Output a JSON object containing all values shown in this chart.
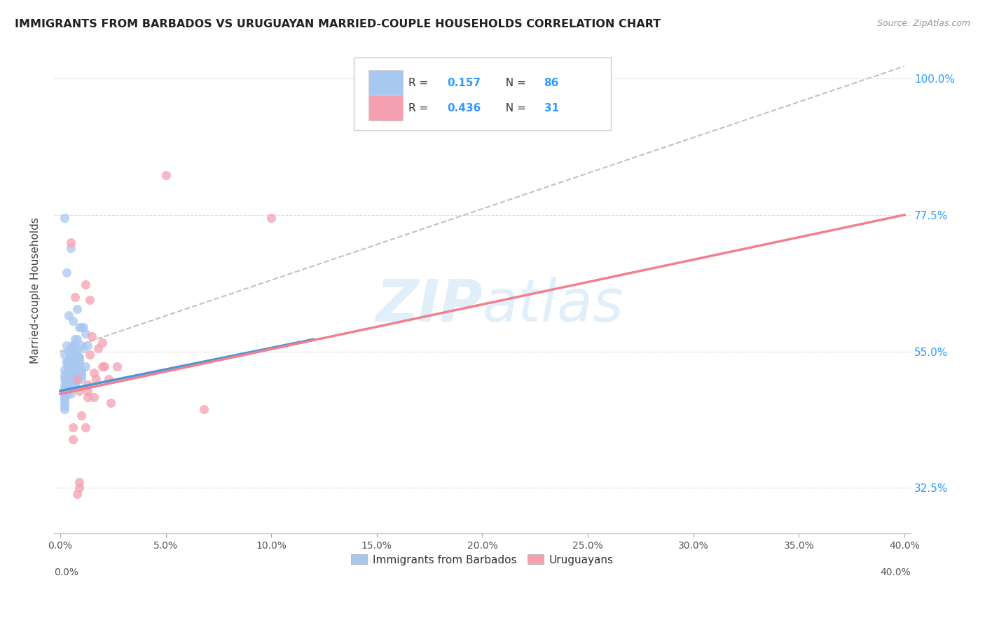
{
  "title": "IMMIGRANTS FROM BARBADOS VS URUGUAYAN MARRIED-COUPLE HOUSEHOLDS CORRELATION CHART",
  "source": "Source: ZipAtlas.com",
  "ylabel_label": "Married-couple Households",
  "legend_label1": "Immigrants from Barbados",
  "legend_label2": "Uruguayans",
  "color_blue": "#a8c8f0",
  "color_pink": "#f5a0b0",
  "color_blue_text": "#3399ff",
  "color_line_blue": "#4d94d4",
  "color_line_pink": "#f08090",
  "color_diag": "#bbbbbb",
  "watermark_color": "#cce5f8",
  "blue_points_x": [
    0.2,
    0.5,
    0.3,
    0.8,
    0.4,
    0.6,
    1.0,
    1.2,
    0.7,
    0.9,
    0.3,
    0.5,
    0.8,
    1.1,
    0.6,
    0.4,
    0.2,
    0.9,
    1.3,
    0.7,
    0.3,
    0.6,
    0.4,
    0.8,
    1.0,
    0.5,
    0.3,
    0.7,
    0.9,
    0.4,
    0.6,
    0.2,
    0.8,
    1.1,
    0.5,
    0.3,
    0.7,
    0.4,
    0.6,
    0.9,
    0.2,
    0.5,
    0.3,
    0.4,
    0.7,
    0.2,
    0.9,
    0.6,
    0.3,
    1.2,
    0.2,
    0.5,
    0.6,
    0.3,
    0.8,
    0.2,
    0.5,
    0.3,
    0.8,
    0.6,
    0.2,
    1.0,
    0.5,
    0.3,
    0.6,
    0.8,
    0.2,
    0.5,
    1.0,
    0.7,
    0.2,
    0.5,
    0.2,
    0.7,
    0.5,
    0.2,
    1.0,
    0.5,
    0.2,
    0.7,
    0.4,
    1.0,
    0.2,
    0.5,
    0.7,
    0.2
  ],
  "blue_points_y": [
    0.77,
    0.72,
    0.68,
    0.62,
    0.61,
    0.6,
    0.59,
    0.58,
    0.57,
    0.59,
    0.56,
    0.555,
    0.57,
    0.59,
    0.56,
    0.55,
    0.545,
    0.54,
    0.56,
    0.55,
    0.535,
    0.56,
    0.535,
    0.55,
    0.56,
    0.54,
    0.53,
    0.555,
    0.54,
    0.525,
    0.535,
    0.52,
    0.54,
    0.555,
    0.535,
    0.515,
    0.53,
    0.51,
    0.525,
    0.535,
    0.51,
    0.525,
    0.505,
    0.505,
    0.52,
    0.505,
    0.53,
    0.518,
    0.5,
    0.525,
    0.495,
    0.515,
    0.51,
    0.49,
    0.52,
    0.49,
    0.51,
    0.485,
    0.515,
    0.505,
    0.485,
    0.52,
    0.505,
    0.48,
    0.5,
    0.51,
    0.48,
    0.495,
    0.515,
    0.505,
    0.475,
    0.495,
    0.475,
    0.505,
    0.495,
    0.47,
    0.51,
    0.49,
    0.465,
    0.5,
    0.485,
    0.505,
    0.46,
    0.48,
    0.495,
    0.455
  ],
  "pink_points_x": [
    0.5,
    0.7,
    1.2,
    1.4,
    1.5,
    1.8,
    1.4,
    2.0,
    2.3,
    2.7,
    0.8,
    1.6,
    2.1,
    0.9,
    2.4,
    1.3,
    0.6,
    1.0,
    1.7,
    1.3,
    2.0,
    0.9,
    5.0,
    1.3,
    0.8,
    1.6,
    6.8,
    1.2,
    0.9,
    0.6,
    10.0
  ],
  "pink_points_y": [
    0.73,
    0.64,
    0.66,
    0.635,
    0.575,
    0.555,
    0.545,
    0.565,
    0.505,
    0.525,
    0.505,
    0.515,
    0.525,
    0.485,
    0.465,
    0.495,
    0.425,
    0.445,
    0.505,
    0.485,
    0.525,
    0.335,
    0.84,
    0.475,
    0.315,
    0.475,
    0.455,
    0.425,
    0.325,
    0.405,
    0.77
  ],
  "xlim_min": 0.0,
  "xlim_max": 40.0,
  "ylim_min": 0.25,
  "ylim_max": 1.05,
  "yticks": [
    0.325,
    0.55,
    0.775,
    1.0
  ],
  "ytick_labels": [
    "32.5%",
    "55.0%",
    "77.5%",
    "100.0%"
  ],
  "xtick_labels": [
    "0.0%",
    "5.0%",
    "10.0%",
    "15.0%",
    "20.0%",
    "25.0%",
    "30.0%",
    "35.0%",
    "40.0%"
  ],
  "blue_line": [
    [
      0.0,
      12.0
    ],
    [
      0.485,
      0.57
    ]
  ],
  "pink_line": [
    [
      0.0,
      40.0
    ],
    [
      0.48,
      0.775
    ]
  ],
  "diag_line": [
    [
      0.0,
      40.0
    ],
    [
      0.55,
      1.02
    ]
  ]
}
